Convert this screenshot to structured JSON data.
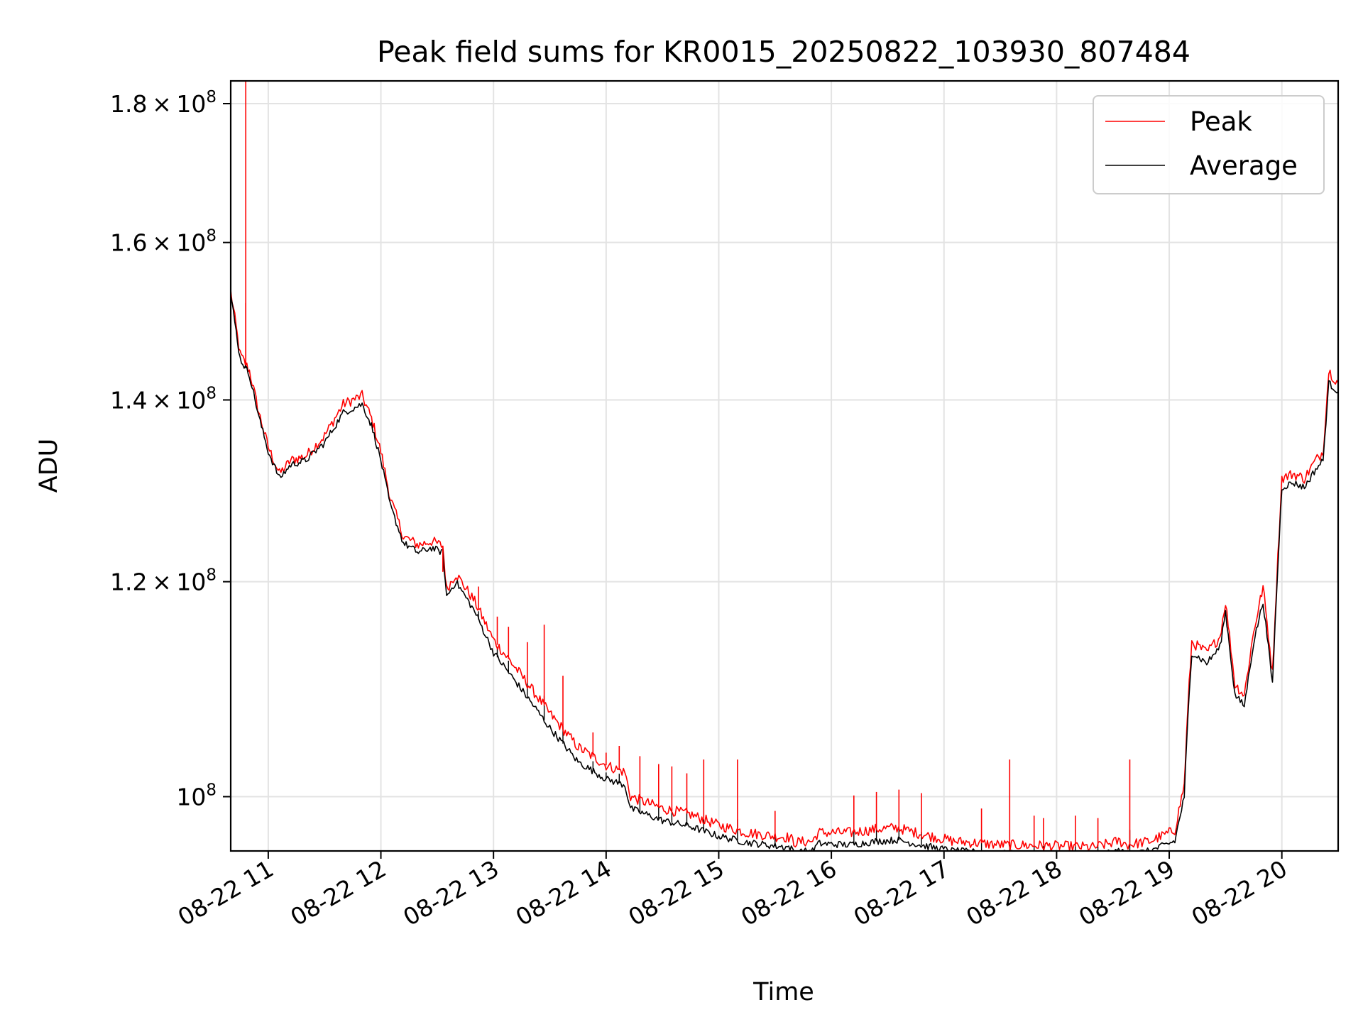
{
  "chart_data": {
    "type": "line",
    "title": "Peak field sums for KR0015_20250822_103930_807484",
    "xlabel": "Time",
    "ylabel": "ADU",
    "yscale": "log",
    "grid": true,
    "legend_position": "top-right",
    "xlim": [
      "2025-08-22 10:40",
      "2025-08-22 20:30"
    ],
    "ylim": [
      95500000,
      183500000
    ],
    "x_ticks": [
      {
        "x": "2025-08-22 11:00",
        "label": "08-22 11"
      },
      {
        "x": "2025-08-22 12:00",
        "label": "08-22 12"
      },
      {
        "x": "2025-08-22 13:00",
        "label": "08-22 13"
      },
      {
        "x": "2025-08-22 14:00",
        "label": "08-22 14"
      },
      {
        "x": "2025-08-22 15:00",
        "label": "08-22 15"
      },
      {
        "x": "2025-08-22 16:00",
        "label": "08-22 16"
      },
      {
        "x": "2025-08-22 17:00",
        "label": "08-22 17"
      },
      {
        "x": "2025-08-22 18:00",
        "label": "08-22 18"
      },
      {
        "x": "2025-08-22 19:00",
        "label": "08-22 19"
      },
      {
        "x": "2025-08-22 20:00",
        "label": "08-22 20"
      }
    ],
    "y_ticks": [
      {
        "y": 100000000,
        "label": "10",
        "exp": "8",
        "mantissa": ""
      },
      {
        "y": 120000000,
        "label": "1.2 × 10",
        "exp": "8",
        "mantissa": "1.2"
      },
      {
        "y": 140000000,
        "label": "1.4 × 10",
        "exp": "8",
        "mantissa": "1.4"
      },
      {
        "y": 160000000,
        "label": "1.6 × 10",
        "exp": "8",
        "mantissa": "1.6"
      },
      {
        "y": 180000000,
        "label": "1.8 × 10",
        "exp": "8",
        "mantissa": "1.8"
      }
    ],
    "series": [
      {
        "name": "Average",
        "color": "#000000",
        "x": [
          "2025-08-22 10:40",
          "2025-08-22 10:45",
          "2025-08-22 10:50",
          "2025-08-22 10:55",
          "2025-08-22 11:00",
          "2025-08-22 11:06",
          "2025-08-22 11:12",
          "2025-08-22 11:20",
          "2025-08-22 11:30",
          "2025-08-22 11:40",
          "2025-08-22 11:50",
          "2025-08-22 11:55",
          "2025-08-22 12:00",
          "2025-08-22 12:05",
          "2025-08-22 12:12",
          "2025-08-22 12:20",
          "2025-08-22 12:27",
          "2025-08-22 12:33",
          "2025-08-22 12:35",
          "2025-08-22 12:40",
          "2025-08-22 12:50",
          "2025-08-22 13:00",
          "2025-08-22 13:15",
          "2025-08-22 13:30",
          "2025-08-22 13:45",
          "2025-08-22 14:00",
          "2025-08-22 14:10",
          "2025-08-22 14:13",
          "2025-08-22 14:30",
          "2025-08-22 14:45",
          "2025-08-22 15:00",
          "2025-08-22 15:15",
          "2025-08-22 15:30",
          "2025-08-22 15:38",
          "2025-08-22 15:40",
          "2025-08-22 15:50",
          "2025-08-22 15:53",
          "2025-08-22 16:10",
          "2025-08-22 16:25",
          "2025-08-22 16:35",
          "2025-08-22 16:50",
          "2025-08-22 17:05",
          "2025-08-22 17:30",
          "2025-08-22 18:00",
          "2025-08-22 18:20",
          "2025-08-22 18:33",
          "2025-08-22 18:38",
          "2025-08-22 18:50",
          "2025-08-22 19:03",
          "2025-08-22 19:08",
          "2025-08-22 19:10",
          "2025-08-22 19:12",
          "2025-08-22 19:20",
          "2025-08-22 19:27",
          "2025-08-22 19:30",
          "2025-08-22 19:35",
          "2025-08-22 19:40",
          "2025-08-22 19:45",
          "2025-08-22 19:50",
          "2025-08-22 19:55",
          "2025-08-22 20:00",
          "2025-08-22 20:06",
          "2025-08-22 20:12",
          "2025-08-22 20:18",
          "2025-08-22 20:22",
          "2025-08-22 20:25",
          "2025-08-22 20:30"
        ],
        "values": [
          153000000,
          145000000,
          143000000,
          138000000,
          134000000,
          131000000,
          132500000,
          133000000,
          135000000,
          138500000,
          139500000,
          137000000,
          133000000,
          128000000,
          124000000,
          123000000,
          123500000,
          123000000,
          118500000,
          120000000,
          117000000,
          113000000,
          109500000,
          106000000,
          103000000,
          101500000,
          101000000,
          99000000,
          98000000,
          97500000,
          96700000,
          96200000,
          95900000,
          95800000,
          95400000,
          95500000,
          96100000,
          96000000,
          96300000,
          96400000,
          95900000,
          95500000,
          95300000,
          95100000,
          95000000,
          95500000,
          95200000,
          95500000,
          96300000,
          100000000,
          107000000,
          113000000,
          112000000,
          113500000,
          117000000,
          109000000,
          108000000,
          114000000,
          118000000,
          110000000,
          130000000,
          130500000,
          130000000,
          132000000,
          133000000,
          142000000,
          141000000
        ]
      },
      {
        "name": "Peak",
        "color": "#ff0000",
        "x": [
          "2025-08-22 10:40",
          "2025-08-22 10:45",
          "2025-08-22 10:50",
          "2025-08-22 10:55",
          "2025-08-22 11:00",
          "2025-08-22 11:06",
          "2025-08-22 11:12",
          "2025-08-22 11:20",
          "2025-08-22 11:30",
          "2025-08-22 11:40",
          "2025-08-22 11:50",
          "2025-08-22 11:55",
          "2025-08-22 12:00",
          "2025-08-22 12:05",
          "2025-08-22 12:12",
          "2025-08-22 12:20",
          "2025-08-22 12:27",
          "2025-08-22 12:33",
          "2025-08-22 12:35",
          "2025-08-22 12:40",
          "2025-08-22 12:50",
          "2025-08-22 13:00",
          "2025-08-22 13:15",
          "2025-08-22 13:30",
          "2025-08-22 13:45",
          "2025-08-22 14:00",
          "2025-08-22 14:10",
          "2025-08-22 14:13",
          "2025-08-22 14:30",
          "2025-08-22 14:45",
          "2025-08-22 15:00",
          "2025-08-22 15:15",
          "2025-08-22 15:30",
          "2025-08-22 15:38",
          "2025-08-22 15:40",
          "2025-08-22 15:50",
          "2025-08-22 15:53",
          "2025-08-22 16:10",
          "2025-08-22 16:25",
          "2025-08-22 16:35",
          "2025-08-22 16:50",
          "2025-08-22 17:05",
          "2025-08-22 17:30",
          "2025-08-22 18:00",
          "2025-08-22 18:20",
          "2025-08-22 18:33",
          "2025-08-22 18:38",
          "2025-08-22 18:50",
          "2025-08-22 19:03",
          "2025-08-22 19:08",
          "2025-08-22 19:10",
          "2025-08-22 19:12",
          "2025-08-22 19:20",
          "2025-08-22 19:27",
          "2025-08-22 19:30",
          "2025-08-22 19:35",
          "2025-08-22 19:40",
          "2025-08-22 19:45",
          "2025-08-22 19:50",
          "2025-08-22 19:55",
          "2025-08-22 20:00",
          "2025-08-22 20:06",
          "2025-08-22 20:12",
          "2025-08-22 20:18",
          "2025-08-22 20:22",
          "2025-08-22 20:25",
          "2025-08-22 20:30"
        ],
        "values": [
          153500000,
          145500000,
          143500000,
          138500000,
          134500000,
          131500000,
          133000000,
          133500000,
          135800000,
          139500000,
          140500000,
          137800000,
          134000000,
          128800000,
          124700000,
          123800000,
          124200000,
          123700000,
          119200000,
          120800000,
          118000000,
          114200000,
          110800000,
          107300000,
          104300000,
          102700000,
          102100000,
          100000000,
          99000000,
          98500000,
          97600000,
          97000000,
          96700000,
          96600000,
          96200000,
          96300000,
          97000000,
          97000000,
          97300000,
          97400000,
          96800000,
          96300000,
          96000000,
          95900000,
          95800000,
          96300000,
          96000000,
          96300000,
          97200000,
          101000000,
          108000000,
          114000000,
          113000000,
          114500000,
          118000000,
          110000000,
          109000000,
          115000000,
          119500000,
          111000000,
          131000000,
          131500000,
          131000000,
          133000000,
          134000000,
          143500000,
          142000000
        ]
      }
    ],
    "peak_spikes": [
      {
        "x": "2025-08-22 10:48",
        "y": 183500000
      },
      {
        "x": "2025-08-22 10:48",
        "y": 152000000
      },
      {
        "x": "2025-08-22 12:33",
        "y": 121000000
      },
      {
        "x": "2025-08-22 12:52",
        "y": 119500000
      },
      {
        "x": "2025-08-22 13:02",
        "y": 116500000
      },
      {
        "x": "2025-08-22 13:08",
        "y": 115500000
      },
      {
        "x": "2025-08-22 13:18",
        "y": 114000000
      },
      {
        "x": "2025-08-22 13:27",
        "y": 115700000
      },
      {
        "x": "2025-08-22 13:37",
        "y": 110800000
      },
      {
        "x": "2025-08-22 13:53",
        "y": 105600000
      },
      {
        "x": "2025-08-22 14:00",
        "y": 103800000
      },
      {
        "x": "2025-08-22 14:07",
        "y": 104400000
      },
      {
        "x": "2025-08-22 14:18",
        "y": 103500000
      },
      {
        "x": "2025-08-22 14:28",
        "y": 102800000
      },
      {
        "x": "2025-08-22 14:35",
        "y": 102600000
      },
      {
        "x": "2025-08-22 14:43",
        "y": 102000000
      },
      {
        "x": "2025-08-22 14:52",
        "y": 103200000
      },
      {
        "x": "2025-08-22 15:10",
        "y": 103200000
      },
      {
        "x": "2025-08-22 15:30",
        "y": 98800000
      },
      {
        "x": "2025-08-22 16:12",
        "y": 100100000
      },
      {
        "x": "2025-08-22 16:24",
        "y": 100400000
      },
      {
        "x": "2025-08-22 16:36",
        "y": 100600000
      },
      {
        "x": "2025-08-22 16:48",
        "y": 100300000
      },
      {
        "x": "2025-08-22 17:20",
        "y": 99000000
      },
      {
        "x": "2025-08-22 17:35",
        "y": 103200000
      },
      {
        "x": "2025-08-22 17:48",
        "y": 98400000
      },
      {
        "x": "2025-08-22 17:53",
        "y": 98200000
      },
      {
        "x": "2025-08-22 18:10",
        "y": 98400000
      },
      {
        "x": "2025-08-22 18:22",
        "y": 98200000
      },
      {
        "x": "2025-08-22 18:39",
        "y": 103200000
      }
    ],
    "legend": [
      {
        "name": "Peak",
        "color": "#ff0000"
      },
      {
        "name": "Average",
        "color": "#000000"
      }
    ]
  }
}
